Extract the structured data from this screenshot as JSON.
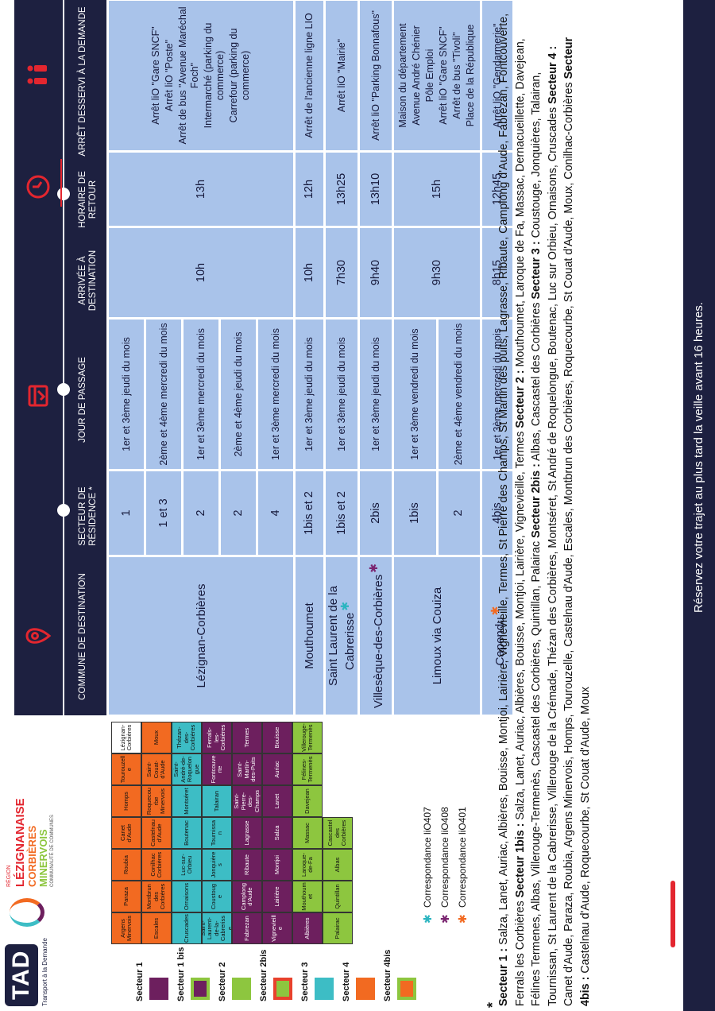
{
  "logo": {
    "mark": "TAD",
    "tagline": "Transport à la Demande",
    "region": "RÉGION",
    "name1": "LÉZIGNANAISE",
    "name2": "CORBIÈRES",
    "name3": "MINERVOIS",
    "community": "COMMUNAUTÉ DE COMMUNES"
  },
  "table": {
    "columns": [
      "COMMUNE DE DESTINATION",
      "SECTEUR DE RÉSIDENCE *",
      "JOUR DE PASSAGE",
      "ARRIVÉE À DESTINATION",
      "HORAIRE DE RETOUR",
      "ARRÊT DESSERVI À LA DEMANDE"
    ],
    "rows": [
      {
        "commune": "Lézignan-Corbières",
        "slots": [
          {
            "sector": "1",
            "day": "1er et 3ème jeudi du mois"
          },
          {
            "sector": "1 et 3",
            "day": "2ème et 4ème mercredi du mois"
          },
          {
            "sector": "2",
            "day": "1er et 3ème mercredi du mois"
          },
          {
            "sector": "2",
            "day": "2ème et 4ème jeudi du mois"
          },
          {
            "sector": "4",
            "day": "1er et 3ème mercredi du mois"
          }
        ],
        "arrival": "10h",
        "return": "13h",
        "stops": [
          "Arrêt liO \"Gare SNCF\"",
          "Arrêt liO \"Poste\"",
          "Arrêt de bus \"Avenue Maréchal Foch\"",
          "Intermarché (parking du commerce)",
          "Carrefour (parking du commerce)"
        ]
      },
      {
        "commune": "Mouthoumet",
        "slots": [
          {
            "sector": "1bis et 2",
            "day": "1er et 3ème jeudi du mois"
          }
        ],
        "arrival": "10h",
        "return": "12h",
        "stops": [
          "Arrêt de l'ancienne ligne LIO"
        ]
      },
      {
        "commune": "Saint Laurent de la Cabrerisse",
        "marker": "✱",
        "marker_color": "#2bb5c0",
        "slots": [
          {
            "sector": "1bis et 2",
            "day": "1er et 3ème jeudi du mois"
          }
        ],
        "arrival": "7h30",
        "return": "13h25",
        "stops": [
          "Arrêt liO \"Mairie\""
        ]
      },
      {
        "commune": "Villesèque-des-Corbières",
        "marker": "✱",
        "marker_color": "#7a2470",
        "slots": [
          {
            "sector": "2bis",
            "day": "1er et 3ème jeudi du mois"
          }
        ],
        "arrival": "9h40",
        "return": "13h10",
        "stops": [
          "Arrêt liO \"Parking Bonnafous\""
        ]
      },
      {
        "commune": "Limoux via Couiza",
        "slots": [
          {
            "sector": "1bis",
            "day": "1er et 3ème vendredi du mois"
          },
          {
            "sector": "2",
            "day": "2ème et 4ème vendredi du mois"
          }
        ],
        "arrival": "9h30",
        "return": "15h",
        "stops": [
          "Maison du département",
          "Avenue André Chénier",
          "Pôle Emploi",
          "Arrêt liO \"Gare SNCF\"",
          "Arrêt de bus \"Tivoli\"",
          "Place de la République"
        ]
      },
      {
        "commune": "Capendu",
        "marker": "✱",
        "marker_color": "#f26a21",
        "slots": [
          {
            "sector": "4bis",
            "day": "1er et 3ème mercredi du mois"
          }
        ],
        "arrival": "8h15",
        "return": "12h45",
        "stops": [
          "Arrêt liO \"Gendarmerie\""
        ]
      }
    ]
  },
  "legend": [
    {
      "label": "Secteur 1",
      "color": "#6d1f5e",
      "border": "#6d1f5e"
    },
    {
      "label": "Secteur 1 bis",
      "color": "#6d1f5e",
      "border": "#8dc63f"
    },
    {
      "label": "Secteur 2",
      "color": "#8dc63f",
      "border": "#8dc63f"
    },
    {
      "label": "Secteur 2bis",
      "color": "#8dc63f",
      "border": "#e8412c"
    },
    {
      "label": "Secteur 3",
      "color": "#3dbdc5",
      "border": "#3dbdc5"
    },
    {
      "label": "Secteur 4",
      "color": "#f26a21",
      "border": "#f26a21"
    },
    {
      "label": "Secteur 4bis",
      "color": "#f26a21",
      "border": "#8dc63f"
    }
  ],
  "correspondances": [
    {
      "marker": "✱",
      "color": "#2bb5c0",
      "label": "Correspondance liO407"
    },
    {
      "marker": "✱",
      "color": "#7a2470",
      "label": "Correspondance liO408"
    },
    {
      "marker": "✱",
      "color": "#f26a21",
      "label": "Correspondance liO401"
    }
  ],
  "map": {
    "communes": [
      {
        "label": "Argens Minervois",
        "color": "#f26a21"
      },
      {
        "label": "Paraza",
        "color": "#f26a21"
      },
      {
        "label": "Roubia",
        "color": "#f26a21"
      },
      {
        "label": "Canet d'Aude",
        "color": "#f26a21"
      },
      {
        "label": "Homps",
        "color": "#f26a21"
      },
      {
        "label": "Tourouzelle",
        "color": "#f26a21"
      },
      {
        "label": "Lézignan-Corbières",
        "color": "#ffffff"
      },
      {
        "label": "Escales",
        "color": "#f26a21"
      },
      {
        "label": "Montbrun des Corbières",
        "color": "#f26a21"
      },
      {
        "label": "Conilhac Corbières",
        "color": "#f26a21"
      },
      {
        "label": "Castelnau d'Aude",
        "color": "#f26a21"
      },
      {
        "label": "Roquecourbe Minervois",
        "color": "#f26a21"
      },
      {
        "label": "Saint-Couat-d'Aude",
        "color": "#f26a21"
      },
      {
        "label": "Moux",
        "color": "#f26a21"
      },
      {
        "label": "Cruscades",
        "color": "#3dbdc5"
      },
      {
        "label": "Ornaisons",
        "color": "#3dbdc5"
      },
      {
        "label": "Luc-sur-Orbieu",
        "color": "#3dbdc5"
      },
      {
        "label": "Boutenac",
        "color": "#3dbdc5"
      },
      {
        "label": "Montséret",
        "color": "#3dbdc5"
      },
      {
        "label": "Saint-André-de-Roquelongue",
        "color": "#3dbdc5"
      },
      {
        "label": "Thézan-des-Corbières",
        "color": "#3dbdc5"
      },
      {
        "label": "Saint-Laurent-de-la-Cabrerisse",
        "color": "#3dbdc5"
      },
      {
        "label": "Coustouge",
        "color": "#3dbdc5"
      },
      {
        "label": "Jonquières",
        "color": "#3dbdc5"
      },
      {
        "label": "Tournissan",
        "color": "#3dbdc5"
      },
      {
        "label": "Talairan",
        "color": "#3dbdc5"
      },
      {
        "label": "Fontcouverte",
        "color": "#6d1f5e"
      },
      {
        "label": "Ferrals-les-Corbières",
        "color": "#6d1f5e"
      },
      {
        "label": "Fabrezan",
        "color": "#6d1f5e"
      },
      {
        "label": "Camplong d'Aude",
        "color": "#6d1f5e"
      },
      {
        "label": "Ribaute",
        "color": "#6d1f5e"
      },
      {
        "label": "Lagrasse",
        "color": "#6d1f5e"
      },
      {
        "label": "Saint-Pierre-des-Champs",
        "color": "#6d1f5e"
      },
      {
        "label": "Saint-Martin-des-Puits",
        "color": "#6d1f5e"
      },
      {
        "label": "Termes",
        "color": "#6d1f5e"
      },
      {
        "label": "Vignevieille",
        "color": "#6d1f5e"
      },
      {
        "label": "Lairière",
        "color": "#6d1f5e"
      },
      {
        "label": "Montjoi",
        "color": "#6d1f5e"
      },
      {
        "label": "Salza",
        "color": "#6d1f5e"
      },
      {
        "label": "Lanet",
        "color": "#6d1f5e"
      },
      {
        "label": "Auriac",
        "color": "#6d1f5e"
      },
      {
        "label": "Bouisse",
        "color": "#6d1f5e"
      },
      {
        "label": "Albières",
        "color": "#6d1f5e"
      },
      {
        "label": "Mouthoumet",
        "color": "#8dc63f"
      },
      {
        "label": "Laroque-de-Fa",
        "color": "#8dc63f"
      },
      {
        "label": "Massac",
        "color": "#8dc63f"
      },
      {
        "label": "Davejean",
        "color": "#8dc63f"
      },
      {
        "label": "Félines-Termenès",
        "color": "#8dc63f"
      },
      {
        "label": "Villerouge-Termenès",
        "color": "#8dc63f"
      },
      {
        "label": "Palairac",
        "color": "#8dc63f"
      },
      {
        "label": "Quintillan",
        "color": "#8dc63f"
      },
      {
        "label": "Albas",
        "color": "#8dc63f"
      },
      {
        "label": "Cascastel des Corbières",
        "color": "#8dc63f"
      }
    ]
  },
  "note_marker": "*",
  "sectors": [
    {
      "label": "Secteur 1 :",
      "text": "Salza, Lanet, Auriac, Albières, Bouisse, Montjoi, Lairière, Vignevieille, Termes, St Pierre des Champs, St Martin des puits, Lagrasse, Ribaute, Camplong d'Aude, Fabrezan, Fontcouverte, Ferrals les Corbières"
    },
    {
      "label": "Secteur 1bis :",
      "text": "Salza, Lanet, Auriac, Albières, Bouisse, Montjoi, Lairière, Vignevieille, Termes"
    },
    {
      "label": "Secteur 2 :",
      "text": "Mouthoumet, Laroque de Fa, Massac, Dernacueillette, Davejean, Félines Termenes, Albas, Villerouge-Termenès, Cascastel des Corbières, Quintillan, Palairac"
    },
    {
      "label": "Secteur 2bis :",
      "text": "Albas, Cascastel des Corbières"
    },
    {
      "label": "Secteur 3 :",
      "text": "Coustouge, Jonquières, Talairan, Tournissan, St Laurent de la Cabrerisse, Villerouge de la Crémade, Thézan des Corbières, Montséret, St André de Roquelongue, Boutenac, Luc sur Orbieu, Ornaisons, Cruscades"
    },
    {
      "label": "Secteur 4 :",
      "text": "Canet d'Aude, Paraza, Roubia, Argens Minervois, Homps, Tourouzelle, Castelnau d'Aude, Escales, Montbrun des Corbières, Roquecourbe, St Couat d'Aude, Moux, Conilhac-Corbières"
    },
    {
      "label": "Secteur 4bis :",
      "text": "Castelnau d'Aude, Roquecourbe, St Couat d'Aude, Moux"
    }
  ],
  "footer": "Réservez votre trajet au plus tard la veille avant 16 heures."
}
